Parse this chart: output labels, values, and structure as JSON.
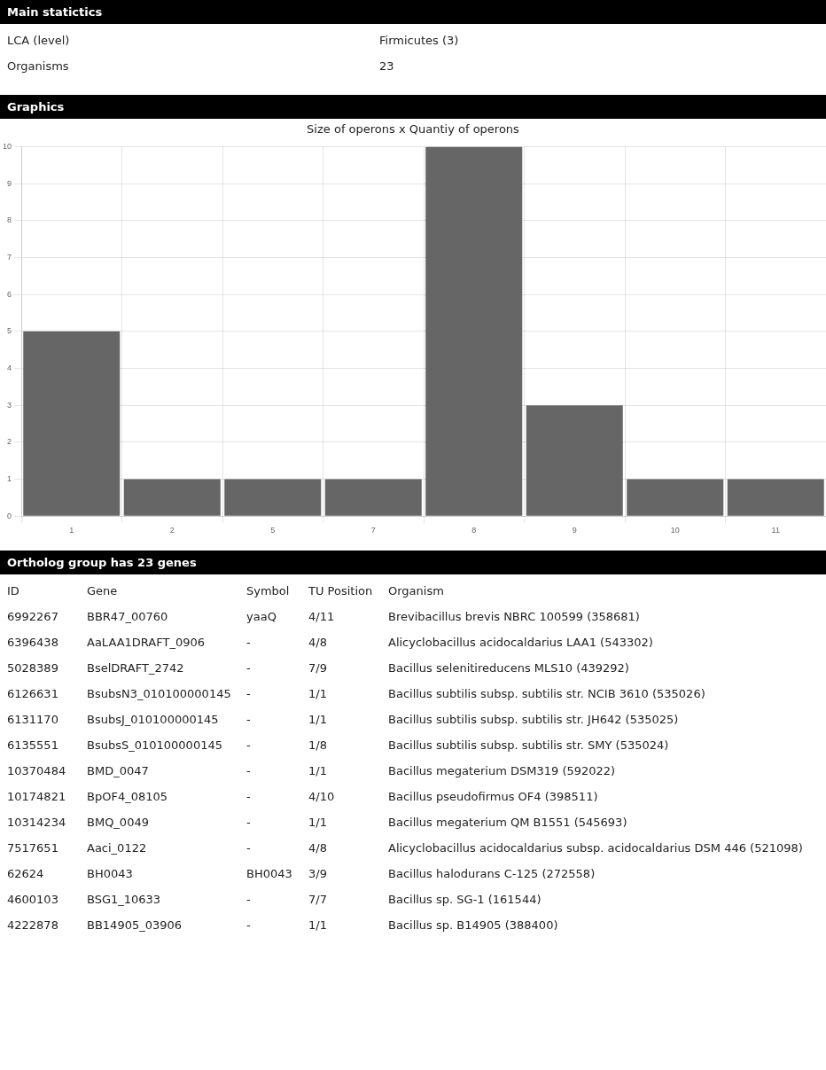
{
  "chart_data": [
    {
      "type": "other",
      "title": "Main statictics",
      "annotations": [
        "LCA (level)",
        "Firmicutes (3)",
        "Organisms",
        "23"
      ]
    },
    {
      "type": "bar",
      "title": "Graphics",
      "subtitle": "Size of operons x Quantiy of operons",
      "categories": [
        "1",
        "2",
        "5",
        "7",
        "8",
        "9",
        "10",
        "11"
      ],
      "values": [
        5,
        1,
        1,
        1,
        10,
        3,
        1,
        1
      ],
      "color": "#666666",
      "ylim": [
        0,
        10
      ],
      "yticks": [
        0,
        1,
        2,
        3,
        4,
        5,
        6,
        7,
        8,
        9,
        10
      ],
      "grid": true,
      "legend": false
    },
    {
      "type": "other",
      "title": "Ortholog group has 23 genes",
      "annotations": [
        "ID",
        "Gene",
        "Symbol",
        "TU Position",
        "Organism",
        "6992267",
        "BBR47_00760",
        "yaaQ",
        "4/11",
        "Brevibacillus brevis NBRC 100599 (358681)",
        "6396438",
        "AaLAA1DRAFT_0906",
        "-",
        "4/8",
        "Alicyclobacillus acidocaldarius LAA1 (543302)",
        "5028389",
        "BselDRAFT_2742",
        "-",
        "7/9",
        "Bacillus selenitireducens MLS10 (439292)",
        "6126631",
        "BsubsN3_010100000145",
        "-",
        "1/1",
        "Bacillus subtilis subsp. subtilis str. NCIB 3610 (535026)",
        "6131170",
        "BsubsJ_010100000145",
        "-",
        "1/1",
        "Bacillus subtilis subsp. subtilis str. JH642 (535025)",
        "6135551",
        "BsubsS_010100000145",
        "-",
        "1/8",
        "Bacillus subtilis subsp. subtilis str. SMY (535024)",
        "10370484",
        "BMD_0047",
        "-",
        "1/1",
        "Bacillus megaterium DSM319 (592022)",
        "10174821",
        "BpOF4_08105",
        "-",
        "4/10",
        "Bacillus pseudofirmus OF4 (398511)",
        "10314234",
        "BMQ_0049",
        "-",
        "1/1",
        "Bacillus megaterium QM B1551 (545693)",
        "7517651",
        "Aaci_0122",
        "-",
        "4/8",
        "Alicyclobacillus acidocaldarius subsp. acidocaldarius DSM 446 (521098)",
        "62624",
        "BH0043",
        "BH0043",
        "3/9",
        "Bacillus halodurans C-125 (272558)",
        "4600103",
        "BSG1_10633",
        "-",
        "7/7",
        "Bacillus sp. SG-1 (161544)",
        "4222878",
        "BB14905_03906",
        "-",
        "1/1",
        "Bacillus sp. B14905 (388400)"
      ]
    }
  ]
}
